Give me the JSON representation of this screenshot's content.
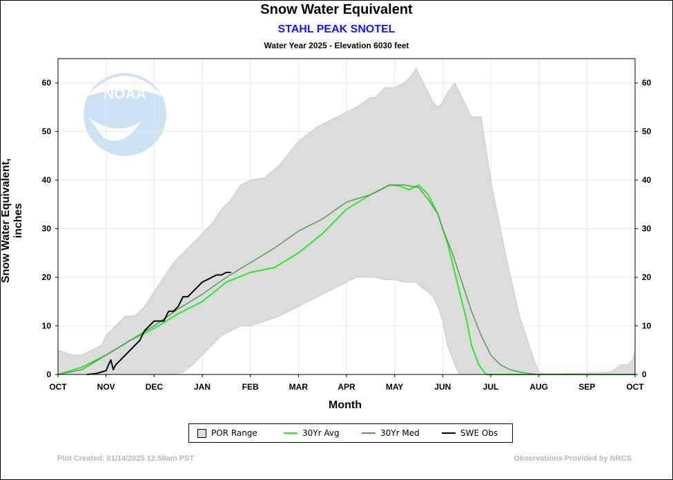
{
  "title": "Snow Water Equivalent",
  "site": "STAHL PEAK SNOTEL",
  "subtitle": "Water Year 2025 -  Elevation 6030 feet",
  "footer_left": "Plot Created: 01/14/2025 12:50am PST",
  "footer_right": "Observations Provided by NRCS",
  "logo_text": "NOAA",
  "legend": [
    {
      "label": "POR Range",
      "kind": "box",
      "color": "#dcdcdc"
    },
    {
      "label": "30Yr Avg",
      "kind": "line",
      "color": "#22ee22"
    },
    {
      "label": "30Yr Med",
      "kind": "line",
      "color": "#559955"
    },
    {
      "label": "SWE Obs",
      "kind": "line",
      "color": "#000000"
    }
  ],
  "chart_data": {
    "type": "area",
    "title": "Snow Water Equivalent",
    "subtitle": "Water Year 2025 -  Elevation 6030 feet",
    "xlabel": "Month",
    "ylabel": "Snow Water Equivalent, inches",
    "x_unit": "month_index",
    "categories": [
      "OCT",
      "NOV",
      "DEC",
      "JAN",
      "FEB",
      "MAR",
      "APR",
      "MAY",
      "JUN",
      "JUL",
      "AUG",
      "SEP",
      "OCT"
    ],
    "xlim": [
      0,
      12
    ],
    "ylim": [
      0,
      65
    ],
    "yticks": [
      0,
      10,
      20,
      30,
      40,
      50,
      60
    ],
    "grid": true,
    "legend_position": "bottom",
    "colors": {
      "por_fill": "#dcdcdc",
      "avg": "#22ee22",
      "med": "#559955",
      "obs": "#000000"
    },
    "series": [
      {
        "name": "POR Range",
        "kind": "band",
        "x": [
          0,
          0.3,
          0.5,
          0.7,
          0.9,
          1.0,
          1.2,
          1.4,
          1.6,
          1.8,
          2.0,
          2.2,
          2.4,
          2.6,
          2.8,
          3.0,
          3.2,
          3.4,
          3.6,
          3.8,
          4.0,
          4.3,
          4.6,
          5.0,
          5.4,
          5.8,
          6.2,
          6.5,
          6.6,
          6.8,
          7.0,
          7.2,
          7.35,
          7.45,
          7.55,
          7.7,
          7.8,
          7.9,
          8.0,
          8.1,
          8.25,
          8.35,
          8.5,
          8.6,
          8.8,
          9.0,
          9.3,
          9.6,
          9.9,
          10.0,
          10.1,
          10.5,
          11.0,
          11.5,
          11.7,
          11.85,
          11.95,
          12.0
        ],
        "high": [
          5,
          4,
          4,
          5,
          6,
          8,
          10,
          12,
          12,
          14,
          17,
          20,
          23,
          25,
          27,
          29,
          31,
          34,
          36,
          39,
          40,
          40.5,
          43,
          48,
          51,
          53,
          55,
          57,
          57,
          59,
          59,
          60,
          61.5,
          63,
          61,
          58,
          56,
          55,
          56,
          58,
          60,
          58,
          55,
          53,
          53,
          40,
          25,
          12,
          3,
          0.5,
          0.2,
          0.2,
          0.3,
          0.5,
          2,
          2,
          3,
          5
        ],
        "low": [
          0,
          0,
          0,
          0,
          0,
          0,
          0,
          0,
          0,
          0,
          0,
          0,
          0,
          0.5,
          2,
          4,
          6,
          8,
          9,
          10,
          10,
          11,
          12,
          14,
          16,
          18,
          20,
          20,
          20,
          19.5,
          19.5,
          19,
          19,
          19,
          18,
          17,
          16,
          14,
          11,
          6,
          2,
          0,
          0,
          0,
          0,
          0,
          0,
          0,
          0,
          0,
          0,
          0,
          0,
          0,
          0,
          0,
          0,
          0
        ]
      },
      {
        "name": "30Yr Avg",
        "x": [
          0,
          0.5,
          1,
          1.5,
          2,
          2.5,
          3,
          3.5,
          4,
          4.5,
          5,
          5.5,
          6,
          6.5,
          6.9,
          7.1,
          7.3,
          7.5,
          7.7,
          7.9,
          8.0,
          8.1,
          8.2,
          8.3,
          8.4,
          8.5,
          8.6,
          8.75,
          8.9,
          9.0,
          12
        ],
        "values": [
          0,
          1.5,
          4,
          7,
          9.5,
          12.5,
          15,
          19,
          21,
          22,
          25,
          29,
          34,
          37,
          39,
          38.8,
          38,
          39,
          37,
          33,
          30,
          27,
          23,
          19,
          15,
          11,
          6,
          2,
          0,
          0,
          0
        ]
      },
      {
        "name": "30Yr Med",
        "x": [
          0,
          0.5,
          1,
          1.5,
          2,
          2.5,
          3,
          3.5,
          4,
          4.5,
          5,
          5.5,
          6,
          6.5,
          6.9,
          7.2,
          7.5,
          7.7,
          7.9,
          8.0,
          8.2,
          8.4,
          8.6,
          8.8,
          9.0,
          9.2,
          9.4,
          9.6,
          9.8,
          10.0,
          12
        ],
        "values": [
          0,
          1,
          4,
          7,
          10,
          13.5,
          16.5,
          20,
          23,
          26,
          29.5,
          32,
          35.5,
          37,
          39,
          39,
          38.5,
          36,
          33,
          30,
          25,
          19,
          13,
          8,
          4,
          2,
          1,
          0.5,
          0.2,
          0,
          0
        ]
      },
      {
        "name": "SWE Obs",
        "x": [
          0.6,
          0.8,
          0.9,
          1.0,
          1.05,
          1.1,
          1.15,
          1.2,
          1.3,
          1.4,
          1.5,
          1.6,
          1.7,
          1.75,
          1.8,
          1.9,
          2.0,
          2.1,
          2.2,
          2.25,
          2.3,
          2.4,
          2.5,
          2.6,
          2.7,
          2.8,
          2.9,
          3.0,
          3.1,
          3.2,
          3.3,
          3.4,
          3.5,
          3.6
        ],
        "values": [
          0,
          0.2,
          0.5,
          0.8,
          2,
          3,
          1,
          2,
          3,
          4,
          5,
          6,
          7,
          8,
          9,
          10,
          11,
          11,
          11,
          12,
          13,
          13,
          14,
          16,
          16,
          17,
          18,
          19,
          19.5,
          20,
          20.5,
          20.5,
          21,
          21
        ]
      }
    ]
  }
}
